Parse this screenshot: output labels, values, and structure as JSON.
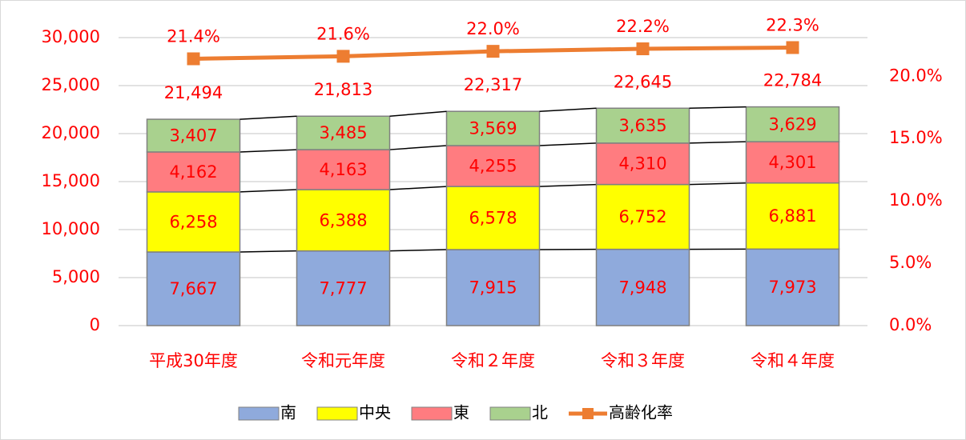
{
  "chart_data": {
    "type": "bar",
    "categories": [
      "平成30年度",
      "令和元年度",
      "令和２年度",
      "令和３年度",
      "令和４年度"
    ],
    "series": [
      {
        "name": "南",
        "color": "#8faadc",
        "values": [
          7667,
          7777,
          7915,
          7948,
          7973
        ],
        "value_labels": [
          "7,667",
          "7,777",
          "7,915",
          "7,948",
          "7,973"
        ]
      },
      {
        "name": "中央",
        "color": "#ffff00",
        "values": [
          6258,
          6388,
          6578,
          6752,
          6881
        ],
        "value_labels": [
          "6,258",
          "6,388",
          "6,578",
          "6,752",
          "6,881"
        ]
      },
      {
        "name": "東",
        "color": "#ff7c80",
        "values": [
          4162,
          4163,
          4255,
          4310,
          4301
        ],
        "value_labels": [
          "4,162",
          "4,163",
          "4,255",
          "4,310",
          "4,301"
        ]
      },
      {
        "name": "北",
        "color": "#a9d18e",
        "values": [
          3407,
          3485,
          3569,
          3635,
          3629
        ],
        "value_labels": [
          "3,407",
          "3,485",
          "3,569",
          "3,635",
          "3,629"
        ]
      },
      {
        "name": "高齢化率",
        "type": "line",
        "axis": "y2",
        "color": "#ed7d31",
        "values": [
          21.4,
          21.6,
          22.0,
          22.2,
          22.3
        ],
        "value_labels": [
          "21.4%",
          "21.6%",
          "22.0%",
          "22.2%",
          "22.3%"
        ]
      }
    ],
    "total_labels": [
      "21,494",
      "21,813",
      "22,317",
      "22,645",
      "22,784"
    ],
    "ylim": [
      0,
      30000
    ],
    "yticks": [
      0,
      {
        "value": 5000,
        "label": "5,000"
      },
      {
        "value": 10000,
        "label": "10,000"
      },
      {
        "value": 15000,
        "label": "15,000"
      },
      {
        "value": 20000,
        "label": "20,000"
      },
      {
        "value": 25000,
        "label": "25,000"
      },
      {
        "value": 30000,
        "label": "30,000"
      }
    ],
    "y2lim": [
      0,
      23.1
    ],
    "y2ticks": [
      {
        "value": 0,
        "label": "0.0%"
      },
      {
        "value": 5,
        "label": "5.0%"
      },
      {
        "value": 10,
        "label": "10.0%"
      },
      {
        "value": 15,
        "label": "15.0%"
      },
      {
        "value": 20,
        "label": "20.0%"
      }
    ],
    "grid": true,
    "legend": "bottom"
  }
}
